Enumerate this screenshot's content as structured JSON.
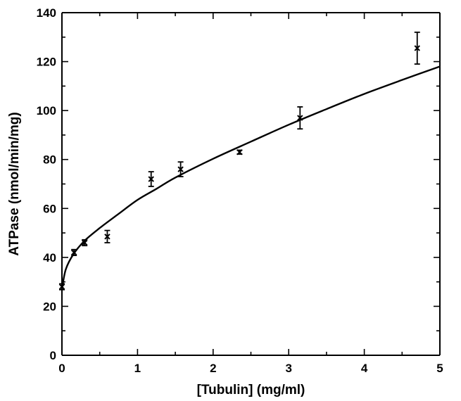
{
  "chart_data": {
    "type": "scatter",
    "title": "",
    "xlabel": "[Tubulin] (mg/ml)",
    "ylabel": "ATPase (nmol/min/mg)",
    "xlim": [
      0,
      5
    ],
    "ylim": [
      0,
      140
    ],
    "x_ticks": [
      "0",
      "1",
      "2",
      "3",
      "4",
      "5"
    ],
    "y_ticks": [
      "0",
      "20",
      "40",
      "60",
      "80",
      "100",
      "120",
      "140"
    ],
    "grid": false,
    "legend": "none",
    "series": [
      {
        "kind": "points_with_error_bars",
        "x": [
          0,
          0.16,
          0.3,
          0.6,
          1.18,
          1.57,
          2.35,
          3.15,
          4.7
        ],
        "y": [
          28,
          42,
          46,
          48.5,
          72,
          76,
          83,
          97,
          125.5
        ],
        "error": [
          1.2,
          1.2,
          1.2,
          2.5,
          3.0,
          3.0,
          0.8,
          4.5,
          6.5
        ]
      },
      {
        "kind": "fitted_curve",
        "x": [
          0,
          0.05,
          0.15,
          0.3,
          0.5,
          0.75,
          1.0,
          1.25,
          1.5,
          2.0,
          2.5,
          3.0,
          3.5,
          4.0,
          4.5,
          5.0
        ],
        "y": [
          27,
          35,
          41.2,
          46.8,
          52,
          57.8,
          63.5,
          68,
          72.6,
          80.3,
          87.3,
          94.2,
          100.6,
          106.8,
          112.5,
          118
        ]
      }
    ],
    "colors": {
      "marks": "#000000",
      "background": "#ffffff"
    }
  }
}
